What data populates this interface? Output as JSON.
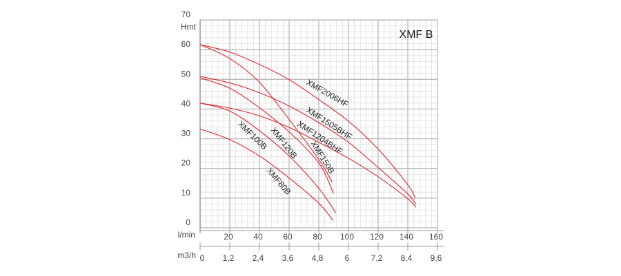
{
  "chart_data": {
    "type": "line",
    "title": "XMF B",
    "xlabel": "l/min",
    "ylabel": "Hmt",
    "xlim": [
      0,
      160
    ],
    "ylim": [
      0,
      70
    ],
    "grid": true,
    "x_ticks": [
      20,
      40,
      60,
      80,
      100,
      120,
      140,
      160
    ],
    "y_ticks": [
      0,
      10,
      20,
      30,
      40,
      50,
      60,
      70
    ],
    "secondary_x": {
      "label": "m3/h",
      "ticks": [
        "0",
        "1,2",
        "2,4",
        "3,6",
        "4,8",
        "6",
        "7,2",
        "8,4",
        "9,6"
      ]
    },
    "line_color": "#e3242b",
    "series": [
      {
        "name": "XMF2006HF",
        "x": [
          0,
          20,
          40,
          60,
          80,
          100,
          120,
          140,
          145
        ],
        "y": [
          61.7,
          59.2,
          55,
          49.9,
          43.2,
          35.9,
          26.5,
          14.5,
          10
        ]
      },
      {
        "name": "XMF150B",
        "x": [
          0,
          20,
          40,
          60,
          80,
          89
        ],
        "y": [
          61.7,
          57,
          49,
          36.5,
          23,
          15.4
        ]
      },
      {
        "name": "XMF1505BHF",
        "x": [
          0,
          20,
          40,
          60,
          80,
          100,
          120,
          140,
          145.5
        ],
        "y": [
          51,
          48.8,
          45.5,
          41,
          35.4,
          28.8,
          20.3,
          11.4,
          7.9
        ]
      },
      {
        "name": "XMF1204BHF",
        "x": [
          0,
          20,
          40,
          60,
          80,
          100,
          120,
          140,
          145.5
        ],
        "y": [
          42,
          40.3,
          37.7,
          33.8,
          28.8,
          23.4,
          17.2,
          9.8,
          6.9
        ]
      },
      {
        "name": "XMF120B",
        "x": [
          0,
          20,
          40,
          60,
          80,
          90
        ],
        "y": [
          50.5,
          47,
          40.4,
          32.3,
          21.8,
          11.5
        ]
      },
      {
        "name": "XMF100B",
        "x": [
          0,
          20,
          40,
          60,
          80,
          91.5
        ],
        "y": [
          42,
          39.3,
          32.7,
          24.2,
          13.3,
          5
        ]
      },
      {
        "name": "XMF80B",
        "x": [
          0,
          20,
          40,
          60,
          80,
          89.5
        ],
        "y": [
          33.3,
          29.7,
          24.2,
          16.8,
          8.3,
          2.5
        ]
      }
    ]
  }
}
